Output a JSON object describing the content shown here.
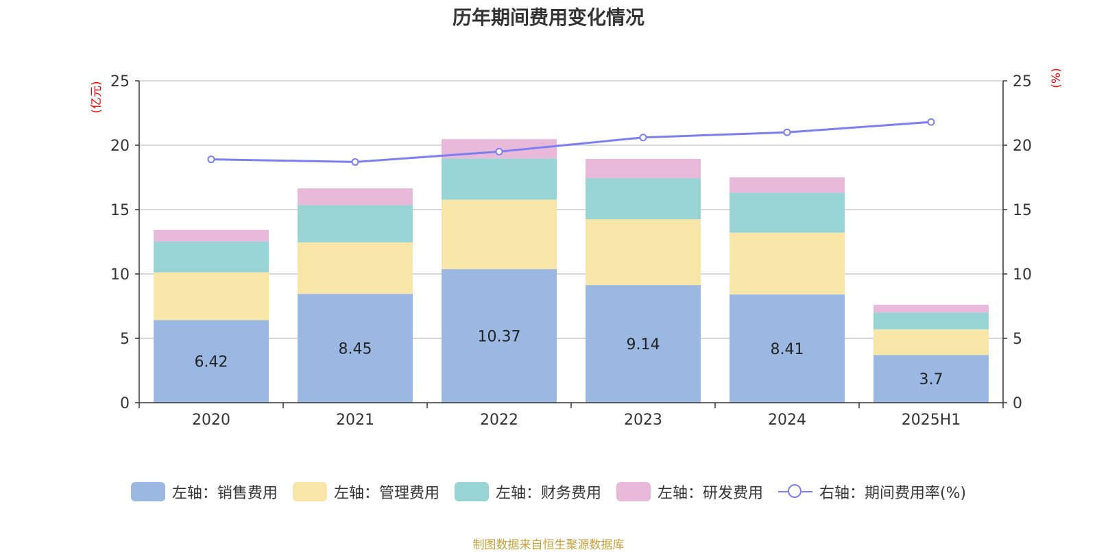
{
  "chart_data": {
    "type": "bar",
    "stacked": true,
    "title": "历年期间费用变化情况",
    "categories": [
      "2020",
      "2021",
      "2022",
      "2023",
      "2024",
      "2025H1"
    ],
    "y_left": {
      "unit_label": "(亿元)",
      "ylim": [
        0,
        25
      ],
      "ticks": [
        0,
        5,
        10,
        15,
        20,
        25
      ]
    },
    "y_right": {
      "unit_label": "(%)",
      "ylim": [
        0,
        25
      ],
      "ticks": [
        0,
        5,
        10,
        15,
        20,
        25
      ]
    },
    "grid": true,
    "legend_position": "bottom",
    "series": [
      {
        "name": "左轴：销售费用",
        "type": "bar",
        "axis": "left",
        "color": "#9bb8e2",
        "values": [
          6.42,
          8.45,
          10.37,
          9.14,
          8.41,
          3.7
        ],
        "labels": [
          "6.42",
          "8.45",
          "10.37",
          "9.14",
          "8.41",
          "3.7"
        ]
      },
      {
        "name": "左轴：管理费用",
        "type": "bar",
        "axis": "left",
        "color": "#f8e6a8",
        "values": [
          3.7,
          4.0,
          5.4,
          5.1,
          4.8,
          2.0
        ]
      },
      {
        "name": "左轴：财务费用",
        "type": "bar",
        "axis": "left",
        "color": "#98d4d4",
        "values": [
          2.4,
          2.9,
          3.2,
          3.2,
          3.1,
          1.3
        ]
      },
      {
        "name": "左轴：研发费用",
        "type": "bar",
        "axis": "left",
        "color": "#e8b9d8",
        "values": [
          0.9,
          1.3,
          1.5,
          1.5,
          1.2,
          0.6
        ]
      },
      {
        "name": "右轴：期间费用率(%)",
        "type": "line",
        "axis": "right",
        "color": "#7b7ff0",
        "values": [
          18.9,
          18.7,
          19.5,
          20.6,
          21.0,
          21.8
        ]
      }
    ],
    "source": "制图数据来自恒生聚源数据库"
  }
}
